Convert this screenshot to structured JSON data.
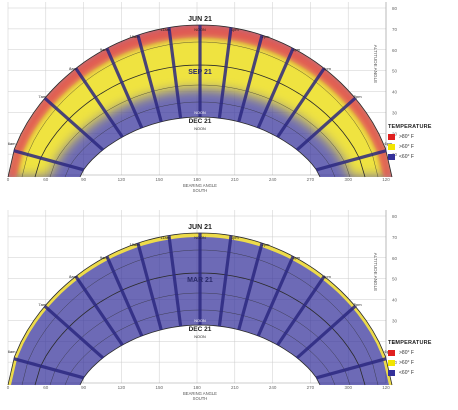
{
  "colors": {
    "hot": "#e02020",
    "warm": "#f2e500",
    "cool": "#34309a",
    "grid": "#cccccc",
    "path": "#2a2a2a"
  },
  "chart_data": [
    {
      "type": "sun-path",
      "band_labels": {
        "summer": "JUN 21",
        "middle": "SEP 21",
        "winter": "DEC 21"
      },
      "summer_noon": "NOON",
      "middle_noon": "NOON",
      "winter_noon": "NOON",
      "x_title_1": "BEARING ANGLE",
      "x_title_2": "SOUTH",
      "y_title": "ALTITUDE ANGLE",
      "x_ticks": [
        "0",
        "60",
        "90",
        "120",
        "150",
        "180",
        "210",
        "240",
        "270",
        "300",
        "120"
      ],
      "y_ticks": [
        "80",
        "70",
        "60",
        "50",
        "40",
        "30",
        "20",
        "10"
      ],
      "hour_labels_am": [
        "6am",
        "7am",
        "8am",
        "9am",
        "10am",
        "11am"
      ],
      "hour_labels_pm": [
        "1pm",
        "2pm",
        "3pm",
        "4pm",
        "5pm",
        "6pm"
      ],
      "legend": {
        "title": "TEMPERATURE",
        "items": [
          {
            "label": ">80° F",
            "color": "#e02020"
          },
          {
            "label": ">60° F",
            "color": "#f2e500"
          },
          {
            "label": "<60° F",
            "color": "#34309a"
          }
        ]
      }
    },
    {
      "type": "sun-path",
      "band_labels": {
        "summer": "JUN 21",
        "middle": "MAR 21",
        "winter": "DEC 21"
      },
      "summer_noon": "NOON",
      "middle_noon": "NOON",
      "winter_noon": "NOON",
      "x_title_1": "BEARING ANGLE",
      "x_title_2": "SOUTH",
      "y_title": "ALTITUDE ANGLE",
      "x_ticks": [
        "0",
        "60",
        "90",
        "120",
        "150",
        "180",
        "210",
        "240",
        "270",
        "300",
        "120"
      ],
      "y_ticks": [
        "80",
        "70",
        "60",
        "50",
        "40",
        "30",
        "20",
        "10"
      ],
      "hour_labels_am": [
        "6am",
        "7am",
        "8am",
        "9am",
        "10am",
        "11am"
      ],
      "hour_labels_pm": [
        "1pm",
        "2pm",
        "3pm",
        "4pm",
        "5pm",
        "6pm"
      ],
      "legend": {
        "title": "TEMPERATURE",
        "items": [
          {
            "label": ">80° F",
            "color": "#e02020"
          },
          {
            "label": ">60° F",
            "color": "#f2e500"
          },
          {
            "label": "<60° F",
            "color": "#34309a"
          }
        ]
      }
    }
  ]
}
